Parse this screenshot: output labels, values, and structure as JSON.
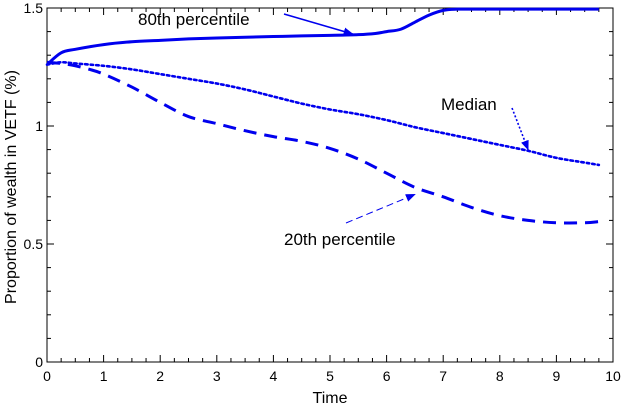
{
  "chart_data": {
    "type": "line",
    "title": "",
    "xlabel": "Time",
    "ylabel": "Proportion of wealth in VETF (%)",
    "xlim": [
      0,
      10
    ],
    "ylim": [
      0,
      1.5
    ],
    "x_ticks": [
      0,
      1,
      2,
      3,
      4,
      5,
      6,
      7,
      8,
      9,
      10
    ],
    "y_ticks": [
      0,
      0.5,
      1,
      1.5
    ],
    "y_tick_labels": [
      "0",
      "0.5",
      "1",
      "1.5"
    ],
    "grid": false,
    "series": [
      {
        "name": "80th percentile",
        "style": "solid",
        "x": [
          0,
          0.25,
          0.5,
          1,
          1.5,
          2,
          2.5,
          3,
          3.5,
          4,
          4.5,
          5,
          5.5,
          5.8,
          6,
          6.25,
          6.5,
          6.75,
          7,
          7.25,
          7.5,
          8,
          8.5,
          9,
          9.5,
          9.75
        ],
        "y": [
          1.26,
          1.31,
          1.325,
          1.345,
          1.357,
          1.363,
          1.369,
          1.373,
          1.376,
          1.379,
          1.382,
          1.384,
          1.387,
          1.392,
          1.4,
          1.41,
          1.44,
          1.47,
          1.49,
          1.495,
          1.495,
          1.495,
          1.495,
          1.495,
          1.495,
          1.495
        ]
      },
      {
        "name": "Median",
        "style": "dotted",
        "x": [
          0,
          0.25,
          0.5,
          1,
          1.5,
          2,
          2.5,
          3,
          3.5,
          4,
          4.5,
          5,
          5.5,
          6,
          6.5,
          7,
          7.5,
          8,
          8.5,
          9,
          9.5,
          9.75
        ],
        "y": [
          1.26,
          1.27,
          1.265,
          1.255,
          1.24,
          1.22,
          1.2,
          1.18,
          1.155,
          1.125,
          1.095,
          1.07,
          1.05,
          1.025,
          0.995,
          0.97,
          0.945,
          0.92,
          0.895,
          0.865,
          0.845,
          0.835
        ]
      },
      {
        "name": "20th percentile",
        "style": "dashed",
        "x": [
          0,
          0.25,
          0.5,
          0.75,
          1,
          1.5,
          2,
          2.5,
          3,
          3.5,
          4,
          4.5,
          5,
          5.5,
          6,
          6.5,
          7,
          7.5,
          8,
          8.5,
          9,
          9.5,
          9.75
        ],
        "y": [
          1.27,
          1.265,
          1.255,
          1.24,
          1.22,
          1.165,
          1.1,
          1.04,
          1.01,
          0.98,
          0.955,
          0.935,
          0.905,
          0.86,
          0.8,
          0.74,
          0.7,
          0.655,
          0.62,
          0.6,
          0.59,
          0.59,
          0.595
        ]
      }
    ],
    "annotations": [
      {
        "text": "80th percentile",
        "style": "solid",
        "arrow_to": [
          5.4,
          1.39
        ]
      },
      {
        "text": "Median",
        "style": "dotted",
        "arrow_to": [
          8.5,
          0.9
        ]
      },
      {
        "text": "20th percentile",
        "style": "dashed",
        "arrow_to": [
          6.5,
          0.71
        ]
      }
    ],
    "line_color": "#0000ee"
  }
}
